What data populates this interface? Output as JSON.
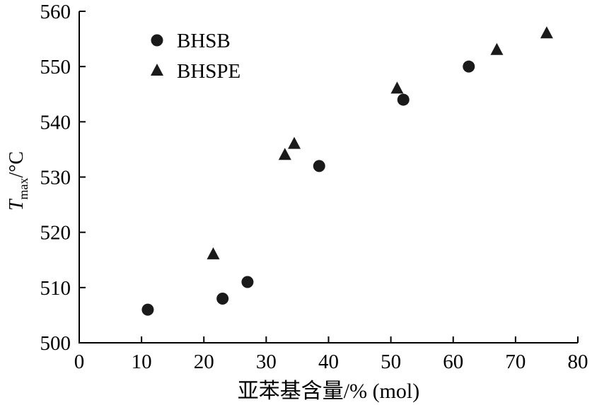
{
  "chart_data": {
    "type": "scatter",
    "title": "",
    "xlabel": "亚苯基含量/% (mol)",
    "ylabel": "T_max/°C",
    "ylabel_parts": {
      "symbol": "T",
      "subscript": "max",
      "suffix": "/°C"
    },
    "xlim": [
      0,
      80
    ],
    "ylim": [
      500,
      560
    ],
    "xticks": [
      0,
      10,
      20,
      30,
      40,
      50,
      60,
      70,
      80
    ],
    "yticks": [
      500,
      510,
      520,
      530,
      540,
      550,
      560
    ],
    "grid": false,
    "legend_position": "top-left-inside",
    "marker_color": "#1a1a1a",
    "series": [
      {
        "name": "BHSB",
        "marker": "circle",
        "color": "#1a1a1a",
        "points": [
          [
            11,
            506
          ],
          [
            23,
            508
          ],
          [
            27,
            511
          ],
          [
            38.5,
            532
          ],
          [
            52,
            544
          ],
          [
            62.5,
            550
          ]
        ]
      },
      {
        "name": "BHSPE",
        "marker": "triangle",
        "color": "#1a1a1a",
        "points": [
          [
            21.5,
            516
          ],
          [
            33,
            534
          ],
          [
            34.5,
            536
          ],
          [
            51,
            546
          ],
          [
            67,
            553
          ],
          [
            75,
            556
          ]
        ]
      }
    ]
  }
}
